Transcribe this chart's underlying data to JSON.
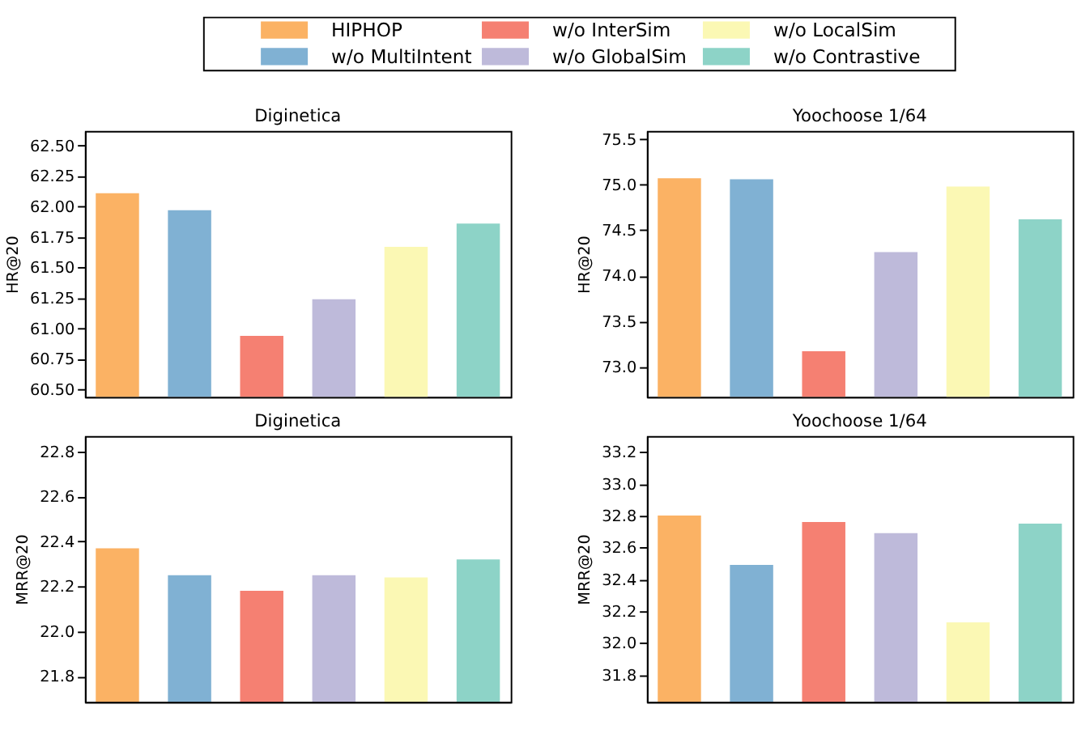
{
  "chart_data": [
    {
      "type": "bar",
      "title": "Diginetica",
      "ylabel": "HR@20",
      "categories": [
        null,
        null,
        null,
        null,
        null,
        null
      ],
      "legend": "top",
      "grid": false,
      "tick_labels": "y",
      "ylim": [
        60.44,
        62.62
      ],
      "yticks": [
        {
          "value": 60.5,
          "label": "60.50"
        },
        {
          "value": 60.75,
          "label": "60.75"
        },
        {
          "value": 61.0,
          "label": "61.00"
        },
        {
          "value": 61.25,
          "label": "61.25"
        },
        {
          "value": 61.5,
          "label": "61.50"
        },
        {
          "value": 61.75,
          "label": "61.75"
        },
        {
          "value": 62.0,
          "label": "62.00"
        },
        {
          "value": 62.25,
          "label": "62.25"
        },
        {
          "value": 62.5,
          "label": "62.50"
        }
      ],
      "series": [
        {
          "name": "HIPHOP",
          "color": "#fbb264",
          "values": [
            62.11,
            null,
            null,
            null,
            null,
            null
          ]
        },
        {
          "name": "w/o MultiIntent",
          "color": "#80b1d3",
          "values": [
            null,
            61.97,
            null,
            null,
            null,
            null
          ]
        },
        {
          "name": "w/o InterSim",
          "color": "#f58072",
          "values": [
            null,
            null,
            60.94,
            null,
            null,
            null
          ]
        },
        {
          "name": "w/o GlobalSim",
          "color": "#bebada",
          "values": [
            null,
            null,
            null,
            61.24,
            null,
            null
          ]
        },
        {
          "name": "w/o LocalSim",
          "color": "#fbf8b4",
          "values": [
            null,
            null,
            null,
            null,
            61.67,
            null
          ]
        },
        {
          "name": "w/o Contrastive",
          "color": "#8dd3c7",
          "values": [
            null,
            null,
            null,
            null,
            null,
            61.86
          ]
        }
      ]
    },
    {
      "type": "bar",
      "title": "Yoochoose 1/64",
      "ylabel": "HR@20",
      "categories": [
        null,
        null,
        null,
        null,
        null,
        null
      ],
      "grid": false,
      "tick_labels": "y",
      "ylim": [
        72.67,
        75.59
      ],
      "yticks": [
        {
          "value": 73.0,
          "label": "73.0"
        },
        {
          "value": 73.5,
          "label": "73.5"
        },
        {
          "value": 74.0,
          "label": "74.0"
        },
        {
          "value": 74.5,
          "label": "74.5"
        },
        {
          "value": 75.0,
          "label": "75.0"
        },
        {
          "value": 75.5,
          "label": "75.5"
        }
      ],
      "values": [
        75.07,
        75.06,
        73.17,
        74.26,
        74.98,
        74.62
      ],
      "colors": [
        "#fbb264",
        "#80b1d3",
        "#f58072",
        "#bebada",
        "#fbf8b4",
        "#8dd3c7"
      ]
    },
    {
      "type": "bar",
      "title": "Diginetica",
      "ylabel": "MRR@20",
      "categories": [
        null,
        null,
        null,
        null,
        null,
        null
      ],
      "grid": false,
      "tick_labels": "y",
      "ylim": [
        21.685,
        22.87
      ],
      "yticks": [
        {
          "value": 21.8,
          "label": "21.8"
        },
        {
          "value": 22.0,
          "label": "22.0"
        },
        {
          "value": 22.2,
          "label": "22.2"
        },
        {
          "value": 22.4,
          "label": "22.4"
        },
        {
          "value": 22.6,
          "label": "22.6"
        },
        {
          "value": 22.8,
          "label": "22.8"
        }
      ],
      "values": [
        22.37,
        22.25,
        22.18,
        22.25,
        22.24,
        22.32
      ],
      "colors": [
        "#fbb264",
        "#80b1d3",
        "#f58072",
        "#bebada",
        "#fbf8b4",
        "#8dd3c7"
      ]
    },
    {
      "type": "bar",
      "title": "Yoochoose 1/64",
      "ylabel": "MRR@20",
      "categories": [
        null,
        null,
        null,
        null,
        null,
        null
      ],
      "grid": false,
      "tick_labels": "y",
      "ylim": [
        31.63,
        33.3
      ],
      "yticks": [
        {
          "value": 31.8,
          "label": "31.8"
        },
        {
          "value": 32.0,
          "label": "32.0"
        },
        {
          "value": 32.2,
          "label": "32.2"
        },
        {
          "value": 32.4,
          "label": "32.4"
        },
        {
          "value": 32.6,
          "label": "32.6"
        },
        {
          "value": 32.8,
          "label": "32.8"
        },
        {
          "value": 33.0,
          "label": "33.0"
        },
        {
          "value": 33.2,
          "label": "33.2"
        }
      ],
      "values": [
        32.8,
        32.49,
        32.76,
        32.69,
        32.13,
        32.75
      ],
      "colors": [
        "#fbb264",
        "#80b1d3",
        "#f58072",
        "#bebada",
        "#fbf8b4",
        "#8dd3c7"
      ]
    }
  ]
}
